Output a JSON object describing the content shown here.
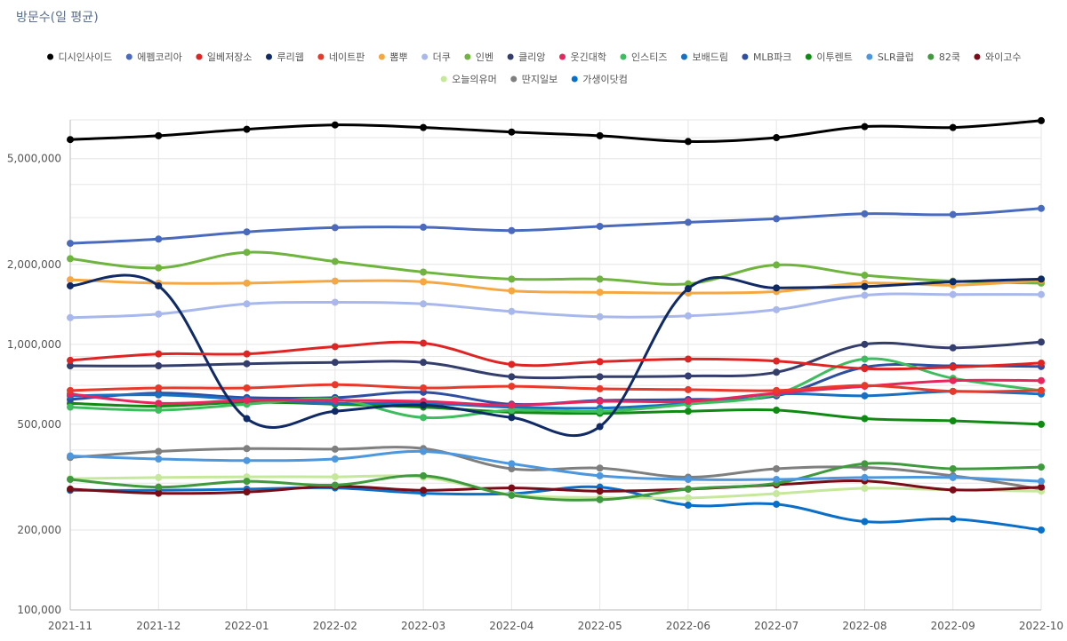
{
  "chart_data": {
    "type": "line",
    "title": "방문수(일 평균)",
    "y_scale": "log",
    "ylim": [
      100000,
      7000000
    ],
    "grid": true,
    "legend_position": "top",
    "x": [
      "2021-11",
      "2021-12",
      "2022-01",
      "2022-02",
      "2022-03",
      "2022-04",
      "2022-05",
      "2022-06",
      "2022-07",
      "2022-08",
      "2022-09",
      "2022-10"
    ],
    "y_ticks": [
      {
        "value": 100000,
        "label": "100,000"
      },
      {
        "value": 200000,
        "label": "200,000"
      },
      {
        "value": 500000,
        "label": "500,000"
      },
      {
        "value": 1000000,
        "label": "1,000,000"
      },
      {
        "value": 2000000,
        "label": "2,000,000"
      },
      {
        "value": 5000000,
        "label": "5,000,000"
      }
    ],
    "series": [
      {
        "name": "디시인사이드",
        "color": "#000000",
        "values": [
          5900000,
          6100000,
          6450000,
          6700000,
          6550000,
          6300000,
          6100000,
          5800000,
          6000000,
          6600000,
          6550000,
          6950000
        ]
      },
      {
        "name": "에펨코리아",
        "color": "#4a6bbd",
        "values": [
          2400000,
          2490000,
          2650000,
          2750000,
          2760000,
          2680000,
          2780000,
          2880000,
          2970000,
          3100000,
          3080000,
          3250000
        ]
      },
      {
        "name": "일베저장소",
        "color": "#e02424",
        "values": [
          870000,
          920000,
          920000,
          980000,
          1010000,
          840000,
          860000,
          880000,
          865000,
          810000,
          820000,
          850000
        ]
      },
      {
        "name": "루리웹",
        "color": "#0f2a66",
        "values": [
          1660000,
          1660000,
          525000,
          560000,
          590000,
          530000,
          490000,
          1620000,
          1630000,
          1650000,
          1720000,
          1760000
        ]
      },
      {
        "name": "네이트판",
        "color": "#e8392b",
        "values": [
          670000,
          685000,
          685000,
          705000,
          685000,
          695000,
          680000,
          675000,
          670000,
          700000,
          665000,
          670000
        ]
      },
      {
        "name": "뽐뿌",
        "color": "#f5a742",
        "values": [
          1750000,
          1700000,
          1700000,
          1730000,
          1720000,
          1590000,
          1570000,
          1560000,
          1580000,
          1700000,
          1670000,
          1740000
        ]
      },
      {
        "name": "더쿠",
        "color": "#a9b8ec",
        "values": [
          1260000,
          1300000,
          1420000,
          1440000,
          1420000,
          1330000,
          1270000,
          1280000,
          1350000,
          1530000,
          1540000,
          1540000
        ]
      },
      {
        "name": "인벤",
        "color": "#6eb43f",
        "values": [
          2100000,
          1940000,
          2220000,
          2050000,
          1870000,
          1760000,
          1760000,
          1690000,
          1990000,
          1820000,
          1730000,
          1700000
        ]
      },
      {
        "name": "클리앙",
        "color": "#343e6c",
        "values": [
          830000,
          830000,
          845000,
          855000,
          855000,
          755000,
          755000,
          760000,
          785000,
          1000000,
          970000,
          1020000
        ]
      },
      {
        "name": "웃긴대학",
        "color": "#e8265e",
        "values": [
          650000,
          600000,
          615000,
          615000,
          610000,
          590000,
          610000,
          610000,
          655000,
          695000,
          730000,
          730000
        ]
      },
      {
        "name": "인스티즈",
        "color": "#3dbd5d",
        "values": [
          580000,
          565000,
          595000,
          620000,
          530000,
          565000,
          560000,
          595000,
          650000,
          880000,
          745000,
          670000
        ]
      },
      {
        "name": "보배드림",
        "color": "#1771c2",
        "values": [
          640000,
          645000,
          620000,
          600000,
          600000,
          580000,
          575000,
          600000,
          650000,
          640000,
          665000,
          650000
        ]
      },
      {
        "name": "MLB파크",
        "color": "#2e4fa1",
        "values": [
          620000,
          655000,
          630000,
          630000,
          660000,
          595000,
          615000,
          620000,
          640000,
          820000,
          830000,
          825000
        ]
      },
      {
        "name": "이투렌트",
        "color": "#118a14",
        "values": [
          600000,
          585000,
          605000,
          595000,
          580000,
          555000,
          550000,
          560000,
          565000,
          525000,
          515000,
          500000
        ]
      },
      {
        "name": "SLR클럽",
        "color": "#4d97de",
        "values": [
          380000,
          370000,
          365000,
          370000,
          395000,
          355000,
          320000,
          310000,
          310000,
          315000,
          315000,
          305000
        ]
      },
      {
        "name": "82쿡",
        "color": "#3f9a3d",
        "values": [
          310000,
          290000,
          305000,
          295000,
          320000,
          270000,
          260000,
          285000,
          300000,
          355000,
          340000,
          345000
        ]
      },
      {
        "name": "와이고수",
        "color": "#7a0c18",
        "values": [
          285000,
          275000,
          278000,
          292000,
          282000,
          288000,
          280000,
          285000,
          296000,
          306000,
          283000,
          290000
        ]
      },
      {
        "name": "오늘의유머",
        "color": "#c6e89a",
        "values": [
          312000,
          315000,
          317000,
          317000,
          316000,
          272000,
          265000,
          264000,
          274000,
          287000,
          283000,
          280000
        ]
      },
      {
        "name": "딴지일보",
        "color": "#7f7f7f",
        "values": [
          375000,
          395000,
          405000,
          403000,
          405000,
          340000,
          342000,
          316000,
          340000,
          344000,
          320000,
          285000
        ]
      },
      {
        "name": "가생이닷컴",
        "color": "#0a6fc9",
        "values": [
          282000,
          282000,
          285000,
          288000,
          275000,
          274000,
          290000,
          248000,
          250000,
          215000,
          220000,
          200000
        ]
      }
    ]
  }
}
